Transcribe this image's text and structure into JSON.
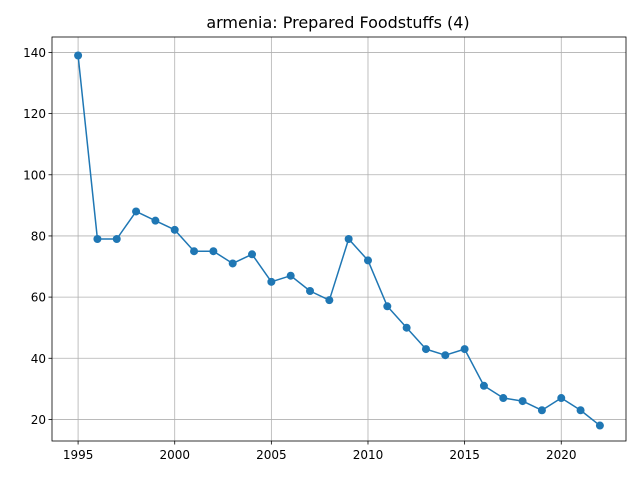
{
  "chart_data": {
    "type": "line",
    "title": "armenia: Prepared Foodstuffs (4)",
    "xlabel": "",
    "ylabel": "",
    "grid": true,
    "xlim": [
      1993.65,
      2023.35
    ],
    "ylim": [
      12.95,
      145.05
    ],
    "xticks": [
      1995,
      2000,
      2005,
      2010,
      2015,
      2020
    ],
    "yticks": [
      20,
      40,
      60,
      80,
      100,
      120,
      140
    ],
    "colors": {
      "series": "#1f77b4"
    },
    "series": [
      {
        "x": [
          1995,
          1996,
          1997,
          1998,
          1999,
          2000,
          2001,
          2002,
          2003,
          2004,
          2005,
          2006,
          2007,
          2008,
          2009,
          2010,
          2011,
          2012,
          2013,
          2014,
          2015,
          2016,
          2017,
          2018,
          2019,
          2020,
          2021,
          2022
        ],
        "values": [
          139,
          79,
          79,
          88,
          85,
          82,
          75,
          75,
          71,
          74,
          65,
          67,
          62,
          59,
          79,
          72,
          57,
          50,
          43,
          41,
          43,
          31,
          27,
          26,
          23,
          27,
          23,
          18
        ]
      }
    ]
  }
}
